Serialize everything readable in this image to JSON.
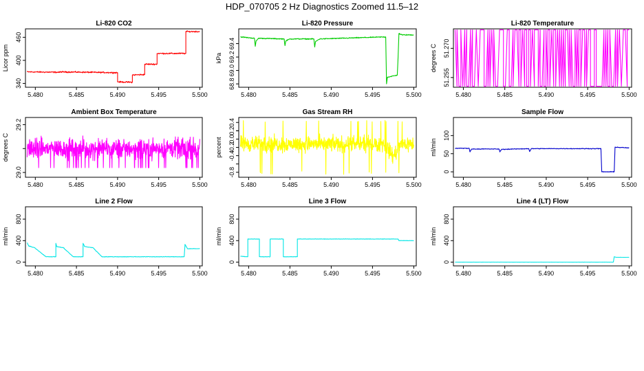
{
  "figure": {
    "title": "HDP_070705  2 Hz Diagnostics Zoomed 11.5–12"
  },
  "chart_data": [
    {
      "type": "line",
      "title": "Li-820 CO2",
      "ylabel": "Licor ppm",
      "xlim": [
        5.4788,
        5.5003
      ],
      "ylim": [
        330,
        482
      ],
      "x_ticks": [
        5.48,
        5.485,
        5.49,
        5.495,
        5.5
      ],
      "x_tick_labels": [
        "5.480",
        "5.485",
        "5.490",
        "5.495",
        "5.500"
      ],
      "y_ticks": [
        340,
        400,
        460
      ],
      "y_tick_labels": [
        "340",
        "400",
        "460"
      ],
      "series": [
        {
          "color": "#ff0000",
          "noise": 1.5,
          "x": [
            5.479,
            5.483,
            5.483,
            5.49,
            5.49,
            5.4918,
            5.4918,
            5.4933,
            5.4933,
            5.4948,
            5.4948,
            5.4983,
            5.4983,
            5.5
          ],
          "y": [
            370,
            369,
            370,
            368,
            344,
            343,
            362,
            363,
            390,
            390,
            418,
            418,
            475,
            475
          ]
        }
      ]
    },
    {
      "type": "line",
      "title": "Li-820 Pressure",
      "ylabel": "kPa",
      "xlim": [
        5.4788,
        5.5003
      ],
      "ylim": [
        68.75,
        69.62
      ],
      "x_ticks": [
        5.48,
        5.485,
        5.49,
        5.495,
        5.5
      ],
      "x_tick_labels": [
        "5.480",
        "5.485",
        "5.490",
        "5.495",
        "5.500"
      ],
      "y_ticks": [
        68.8,
        69.0,
        69.2,
        69.4
      ],
      "y_tick_labels": [
        "68.8",
        "69.0",
        "69.2",
        "69.4"
      ],
      "series": [
        {
          "color": "#00cc00",
          "noise": 0.006,
          "x": [
            5.479,
            5.4807,
            5.4808,
            5.4809,
            5.4812,
            5.4843,
            5.4844,
            5.4845,
            5.485,
            5.4879,
            5.488,
            5.4881,
            5.4886,
            5.4966,
            5.4967,
            5.4968,
            5.498,
            5.4981,
            5.4982,
            5.4986,
            5.5
          ],
          "y": [
            69.5,
            69.48,
            69.36,
            69.44,
            69.48,
            69.47,
            69.37,
            69.44,
            69.47,
            69.47,
            69.35,
            69.43,
            69.47,
            69.5,
            68.8,
            68.9,
            68.93,
            69.2,
            69.55,
            69.53,
            69.53
          ]
        }
      ]
    },
    {
      "type": "line",
      "title": "Li-820 Temperature",
      "ylabel": "degrees C",
      "xlim": [
        5.4788,
        5.5003
      ],
      "ylim": [
        51.25,
        51.28
      ],
      "x_ticks": [
        5.48,
        5.485,
        5.49,
        5.495,
        5.5
      ],
      "x_tick_labels": [
        "5.480",
        "5.485",
        "5.490",
        "5.495",
        "5.500"
      ],
      "y_ticks": [
        51.255,
        51.27
      ],
      "y_tick_labels": [
        "51.255",
        "51.270"
      ],
      "series": [
        {
          "color": "#ff00ff",
          "style": "toggle",
          "levels": [
            51.2505,
            51.2795
          ]
        }
      ]
    },
    {
      "type": "line",
      "title": "Ambient Box Temperature",
      "ylabel": "degrees C",
      "xlim": [
        5.4788,
        5.5003
      ],
      "ylim": [
        28.98,
        29.23
      ],
      "x_ticks": [
        5.48,
        5.485,
        5.49,
        5.495,
        5.5
      ],
      "x_tick_labels": [
        "5.480",
        "5.485",
        "5.490",
        "5.495",
        "5.500"
      ],
      "y_ticks": [
        29.0,
        29.2
      ],
      "y_tick_labels": [
        "29.0",
        "29.2"
      ],
      "y_minor_ticks": [
        29.1
      ],
      "series": [
        {
          "color": "#ff00ff",
          "style": "noise",
          "base": 29.1,
          "noise": 0.035,
          "range": [
            29.02,
            29.21
          ]
        }
      ]
    },
    {
      "type": "line",
      "title": "Gas Stream RH",
      "ylabel": "percent",
      "xlim": [
        5.4788,
        5.5003
      ],
      "ylim": [
        -0.92,
        0.52
      ],
      "x_ticks": [
        5.48,
        5.485,
        5.49,
        5.495,
        5.5
      ],
      "x_tick_labels": [
        "5.480",
        "5.485",
        "5.490",
        "5.495",
        "5.500"
      ],
      "y_ticks": [
        -0.8,
        -0.4,
        0.0,
        0.4
      ],
      "y_tick_labels": [
        "-0.8",
        "-0.4",
        "0.0",
        "0.4"
      ],
      "y_minor_ticks": [
        -0.6,
        -0.2,
        0.2
      ],
      "y_minor_labels": [
        "-0.2",
        "0.2"
      ],
      "series": [
        {
          "color": "#ffff00",
          "style": "noise",
          "base": -0.12,
          "noise": 0.16,
          "range": [
            -0.85,
            0.45
          ],
          "dip": {
            "x": [
              5.4965,
              5.4985
            ],
            "y": -0.45
          }
        }
      ]
    },
    {
      "type": "line",
      "title": "Sample Flow",
      "ylabel": "ml/min",
      "xlim": [
        5.4788,
        5.5003
      ],
      "ylim": [
        -15,
        150
      ],
      "x_ticks": [
        5.48,
        5.485,
        5.49,
        5.495,
        5.5
      ],
      "x_tick_labels": [
        "5.480",
        "5.485",
        "5.490",
        "5.495",
        "5.500"
      ],
      "y_ticks": [
        0,
        50,
        100
      ],
      "y_tick_labels": [
        "0",
        "50",
        "100"
      ],
      "series": [
        {
          "color": "#0000cc",
          "noise": 0.8,
          "x": [
            5.479,
            5.4807,
            5.4808,
            5.481,
            5.4843,
            5.4844,
            5.4846,
            5.4879,
            5.488,
            5.4882,
            5.4966,
            5.4967,
            5.4982,
            5.4983,
            5.5
          ],
          "y": [
            65,
            65,
            55,
            63,
            63,
            55,
            62,
            64,
            56,
            64,
            64,
            0,
            0,
            68,
            66
          ]
        }
      ]
    },
    {
      "type": "line",
      "title": "Line 2 Flow",
      "ylabel": "ml/min",
      "xlim": [
        5.4788,
        5.5003
      ],
      "ylim": [
        -70,
        1030
      ],
      "x_ticks": [
        5.48,
        5.485,
        5.49,
        5.495,
        5.5
      ],
      "x_tick_labels": [
        "5.480",
        "5.485",
        "5.490",
        "5.495",
        "5.500"
      ],
      "y_ticks": [
        0,
        400,
        800
      ],
      "y_tick_labels": [
        "0",
        "400",
        "800"
      ],
      "series": [
        {
          "color": "#00e5e5",
          "noise": 4,
          "x": [
            5.479,
            5.4792,
            5.4799,
            5.4799,
            5.4813,
            5.4813,
            5.4825,
            5.4825,
            5.4826,
            5.4833,
            5.4834,
            5.4846,
            5.4847,
            5.4858,
            5.4858,
            5.486,
            5.4869,
            5.487,
            5.4881,
            5.4881,
            5.4981,
            5.4982,
            5.4985,
            5.5
          ],
          "y": [
            360,
            300,
            270,
            270,
            100,
            100,
            100,
            350,
            290,
            270,
            270,
            100,
            100,
            100,
            350,
            290,
            270,
            270,
            100,
            100,
            100,
            330,
            250,
            250
          ]
        }
      ]
    },
    {
      "type": "line",
      "title": "Line 3 Flow",
      "ylabel": "ml/min",
      "xlim": [
        5.4788,
        5.5003
      ],
      "ylim": [
        -70,
        1030
      ],
      "x_ticks": [
        5.48,
        5.485,
        5.49,
        5.495,
        5.5
      ],
      "x_tick_labels": [
        "5.480",
        "5.485",
        "5.490",
        "5.495",
        "5.500"
      ],
      "y_ticks": [
        0,
        400,
        800
      ],
      "y_tick_labels": [
        "0",
        "400",
        "800"
      ],
      "series": [
        {
          "color": "#00e5e5",
          "noise": 3,
          "x": [
            5.479,
            5.4799,
            5.4799,
            5.4813,
            5.4813,
            5.4826,
            5.4826,
            5.4842,
            5.4842,
            5.4859,
            5.4859,
            5.488,
            5.488,
            5.4981,
            5.4982,
            5.5
          ],
          "y": [
            110,
            100,
            430,
            430,
            100,
            100,
            430,
            430,
            100,
            100,
            430,
            430,
            430,
            430,
            400,
            400
          ]
        }
      ]
    },
    {
      "type": "line",
      "title": "Line 4 (LT) Flow",
      "ylabel": "ml/min",
      "xlim": [
        5.4788,
        5.5003
      ],
      "ylim": [
        -70,
        1030
      ],
      "x_ticks": [
        5.48,
        5.485,
        5.49,
        5.495,
        5.5
      ],
      "x_tick_labels": [
        "5.480",
        "5.485",
        "5.490",
        "5.495",
        "5.500"
      ],
      "y_ticks": [
        0,
        400,
        800
      ],
      "y_tick_labels": [
        "0",
        "400",
        "800"
      ],
      "series": [
        {
          "color": "#00e5e5",
          "noise": 1,
          "x": [
            5.479,
            5.4981,
            5.4982,
            5.4984,
            5.5
          ],
          "y": [
            0,
            0,
            100,
            90,
            90
          ]
        }
      ]
    }
  ]
}
